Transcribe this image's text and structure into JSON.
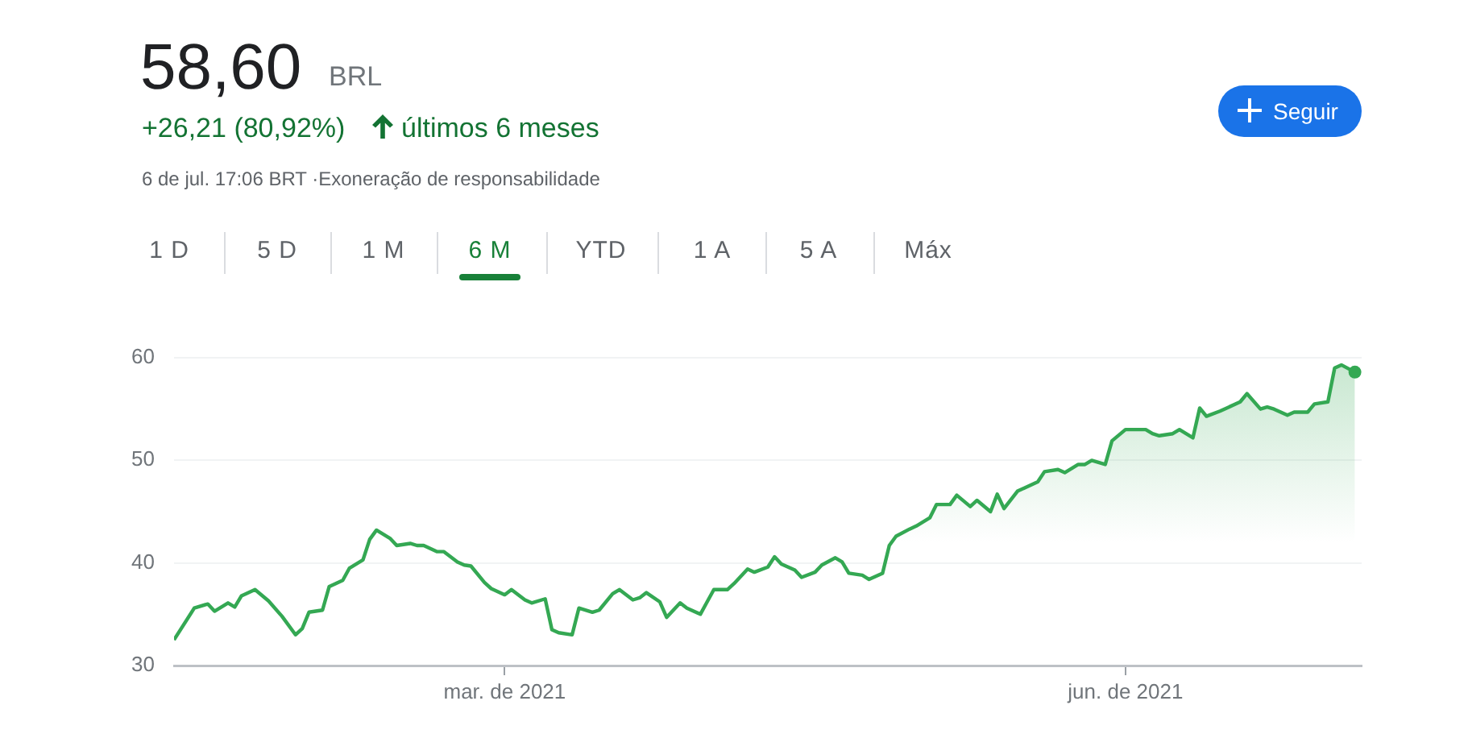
{
  "chart_data": {
    "type": "area",
    "title": "58,60",
    "annotations": [
      "BRL",
      "+26,21 (80,92%)",
      "últimos 6 meses",
      "6 de jul. 17:06 BRT ·Exoneração de responsabilidade",
      "Seguir",
      "1 D",
      "5 D",
      "1 M",
      "6 M",
      "YTD",
      "1 A",
      "5 A",
      "Máx"
    ],
    "x": [
      "2021-01-11",
      "2021-01-14",
      "2021-01-16",
      "2021-01-17",
      "2021-01-19",
      "2021-01-20",
      "2021-01-21",
      "2021-01-23",
      "2021-01-25",
      "2021-01-27",
      "2021-01-29",
      "2021-01-30",
      "2021-01-31",
      "2021-02-02",
      "2021-02-03",
      "2021-02-05",
      "2021-02-06",
      "2021-02-08",
      "2021-02-09",
      "2021-02-10",
      "2021-02-12",
      "2021-02-13",
      "2021-02-15",
      "2021-02-16",
      "2021-02-17",
      "2021-02-19",
      "2021-02-20",
      "2021-02-22",
      "2021-02-23",
      "2021-02-24",
      "2021-02-26",
      "2021-02-27",
      "2021-03-01",
      "2021-03-02",
      "2021-03-04",
      "2021-03-05",
      "2021-03-07",
      "2021-03-08",
      "2021-03-09",
      "2021-03-11",
      "2021-03-12",
      "2021-03-14",
      "2021-03-15",
      "2021-03-17",
      "2021-03-18",
      "2021-03-20",
      "2021-03-21",
      "2021-03-22",
      "2021-03-24",
      "2021-03-25",
      "2021-03-27",
      "2021-03-28",
      "2021-03-30",
      "2021-03-31",
      "2021-04-01",
      "2021-04-03",
      "2021-04-04",
      "2021-04-06",
      "2021-04-07",
      "2021-04-09",
      "2021-04-10",
      "2021-04-11",
      "2021-04-13",
      "2021-04-14",
      "2021-04-16",
      "2021-04-17",
      "2021-04-19",
      "2021-04-20",
      "2021-04-21",
      "2021-04-23",
      "2021-04-24",
      "2021-04-26",
      "2021-04-27",
      "2021-04-28",
      "2021-04-30",
      "2021-05-01",
      "2021-05-03",
      "2021-05-04",
      "2021-05-06",
      "2021-05-07",
      "2021-05-09",
      "2021-05-10",
      "2021-05-12",
      "2021-05-13",
      "2021-05-14",
      "2021-05-16",
      "2021-05-17",
      "2021-05-19",
      "2021-05-20",
      "2021-05-22",
      "2021-05-23",
      "2021-05-25",
      "2021-05-26",
      "2021-05-27",
      "2021-05-29",
      "2021-05-30",
      "2021-06-01",
      "2021-06-02",
      "2021-06-04",
      "2021-06-05",
      "2021-06-06",
      "2021-06-08",
      "2021-06-09",
      "2021-06-11",
      "2021-06-12",
      "2021-06-13",
      "2021-06-15",
      "2021-06-16",
      "2021-06-18",
      "2021-06-19",
      "2021-06-21",
      "2021-06-22",
      "2021-06-23",
      "2021-06-25",
      "2021-06-26",
      "2021-06-28",
      "2021-06-29",
      "2021-07-01",
      "2021-07-02",
      "2021-07-03",
      "2021-07-05"
    ],
    "values": [
      32.5,
      35.6,
      36.0,
      35.3,
      36.1,
      35.7,
      36.8,
      37.4,
      36.3,
      34.8,
      33.0,
      33.6,
      35.2,
      35.4,
      37.7,
      38.3,
      39.5,
      40.3,
      42.3,
      43.2,
      42.4,
      41.7,
      41.9,
      41.7,
      41.7,
      41.1,
      41.1,
      40.1,
      39.8,
      39.7,
      38.1,
      37.5,
      36.9,
      37.4,
      36.4,
      36.1,
      36.5,
      33.5,
      33.2,
      33.0,
      35.6,
      35.2,
      35.4,
      37.0,
      37.4,
      36.4,
      36.6,
      37.1,
      36.2,
      34.7,
      36.1,
      35.6,
      35.0,
      36.2,
      37.4,
      37.4,
      38.0,
      39.4,
      39.1,
      39.6,
      40.6,
      39.9,
      39.3,
      38.6,
      39.1,
      39.8,
      40.5,
      40.1,
      39.0,
      38.8,
      38.4,
      39.0,
      41.7,
      42.6,
      43.3,
      43.6,
      44.4,
      45.7,
      45.7,
      46.6,
      45.5,
      46.1,
      45.0,
      46.7,
      45.3,
      47.0,
      47.3,
      47.9,
      48.9,
      49.1,
      48.8,
      49.6,
      49.6,
      50.0,
      49.6,
      51.9,
      53.0,
      53.0,
      53.0,
      52.6,
      52.4,
      52.6,
      53.0,
      52.2,
      55.1,
      54.3,
      54.8,
      55.1,
      55.7,
      56.5,
      55.0,
      55.2,
      55.0,
      54.4,
      54.7,
      54.7,
      55.5,
      55.7,
      59.0,
      59.3,
      58.6
    ],
    "color": "#34a853",
    "xlim": [
      "2021-01-11",
      "2021-07-06"
    ],
    "xticks": [
      {
        "value": "2021-03-01",
        "label": "mar. de 2021"
      },
      {
        "value": "2021-06-01",
        "label": "jun. de 2021"
      }
    ],
    "ylim": [
      30,
      60
    ],
    "yticks": [
      30,
      40,
      50,
      60
    ],
    "grid": "y"
  }
}
